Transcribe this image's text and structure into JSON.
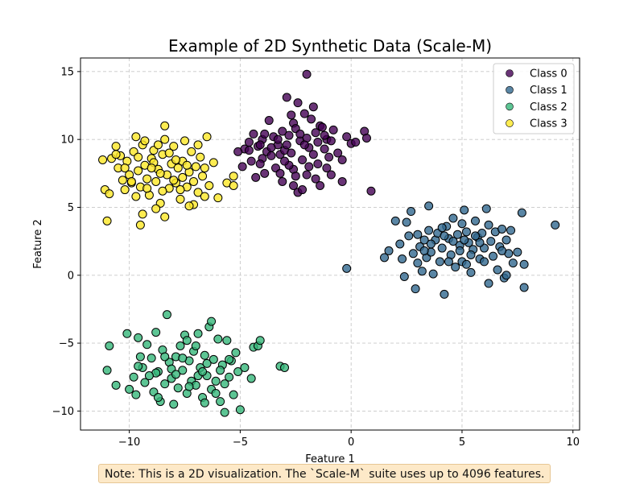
{
  "chart_data": {
    "type": "scatter",
    "title": "Example of 2D Synthetic Data (Scale-M)",
    "xlabel": "Feature 1",
    "ylabel": "Feature 2",
    "xlim": [
      -12.2,
      10.3
    ],
    "ylim": [
      -11.4,
      16.0
    ],
    "xticks": [
      -10,
      -5,
      0,
      5,
      10
    ],
    "yticks": [
      -10,
      -5,
      0,
      5,
      10,
      15
    ],
    "grid": true,
    "legend_position": "top-right",
    "series": [
      {
        "name": "Class 0",
        "color": "#440154",
        "points": [
          [
            -4.8,
            9.3
          ],
          [
            -4.6,
            9.2
          ],
          [
            -4.4,
            10.4
          ],
          [
            -4.2,
            9.5
          ],
          [
            -4.0,
            10.0
          ],
          [
            -4.0,
            8.6
          ],
          [
            -3.8,
            9.1
          ],
          [
            -3.7,
            11.4
          ],
          [
            -3.5,
            10.2
          ],
          [
            -3.3,
            9.6
          ],
          [
            -3.2,
            8.9
          ],
          [
            -3.1,
            10.6
          ],
          [
            -3.0,
            9.2
          ],
          [
            -2.9,
            13.1
          ],
          [
            -2.8,
            10.3
          ],
          [
            -2.7,
            9.0
          ],
          [
            -2.6,
            11.2
          ],
          [
            -2.5,
            10.8
          ],
          [
            -2.4,
            12.7
          ],
          [
            -2.3,
            9.9
          ],
          [
            -2.2,
            8.5
          ],
          [
            -2.1,
            11.9
          ],
          [
            -2.0,
            10.1
          ],
          [
            -1.9,
            9.4
          ],
          [
            -1.8,
            11.5
          ],
          [
            -1.7,
            12.4
          ],
          [
            -1.6,
            10.5
          ],
          [
            -1.5,
            9.8
          ],
          [
            -1.4,
            11.0
          ],
          [
            -1.3,
            10.9
          ],
          [
            -1.2,
            9.3
          ],
          [
            -1.1,
            10.0
          ],
          [
            -1.0,
            8.7
          ],
          [
            -0.9,
            9.9
          ],
          [
            -0.8,
            10.7
          ],
          [
            -0.6,
            9.0
          ],
          [
            -0.4,
            8.5
          ],
          [
            -0.2,
            10.2
          ],
          [
            0.0,
            9.7
          ],
          [
            0.2,
            9.8
          ],
          [
            0.6,
            10.6
          ],
          [
            0.7,
            10.1
          ],
          [
            0.9,
            6.2
          ],
          [
            -2.0,
            14.8
          ],
          [
            -5.1,
            9.1
          ],
          [
            -4.9,
            8.0
          ],
          [
            -4.3,
            7.2
          ],
          [
            -3.9,
            7.5
          ],
          [
            -3.4,
            7.9
          ],
          [
            -3.1,
            6.9
          ],
          [
            -2.6,
            7.8
          ],
          [
            -2.4,
            6.1
          ],
          [
            -2.2,
            6.3
          ],
          [
            -1.6,
            7.1
          ],
          [
            -1.4,
            6.6
          ],
          [
            -1.1,
            7.9
          ],
          [
            -0.4,
            6.9
          ],
          [
            -4.6,
            9.8
          ],
          [
            -4.1,
            8.2
          ],
          [
            -3.6,
            8.8
          ],
          [
            -2.8,
            8.1
          ],
          [
            -2.5,
            7.3
          ],
          [
            -1.9,
            8.0
          ],
          [
            -1.7,
            8.9
          ],
          [
            -3.3,
            10.0
          ],
          [
            -2.9,
            9.6
          ],
          [
            -2.3,
            10.4
          ],
          [
            -3.6,
            9.4
          ],
          [
            -4.5,
            8.4
          ],
          [
            -3.0,
            8.4
          ],
          [
            -1.5,
            8.2
          ],
          [
            -2.1,
            9.6
          ],
          [
            -4.1,
            9.6
          ],
          [
            -3.2,
            7.5
          ],
          [
            -2.0,
            7.4
          ],
          [
            -1.2,
            10.3
          ],
          [
            -2.7,
            11.8
          ],
          [
            -3.9,
            10.4
          ],
          [
            -2.6,
            6.6
          ],
          [
            -0.9,
            7.4
          ]
        ]
      },
      {
        "name": "Class 1",
        "color": "#31688e",
        "points": [
          [
            1.5,
            1.3
          ],
          [
            1.7,
            1.8
          ],
          [
            2.0,
            4.0
          ],
          [
            2.2,
            2.3
          ],
          [
            2.3,
            1.2
          ],
          [
            2.4,
            -0.1
          ],
          [
            2.5,
            3.9
          ],
          [
            2.6,
            2.9
          ],
          [
            2.7,
            4.7
          ],
          [
            2.8,
            1.6
          ],
          [
            2.9,
            -1.0
          ],
          [
            3.0,
            3.0
          ],
          [
            3.1,
            2.1
          ],
          [
            3.2,
            0.3
          ],
          [
            3.3,
            2.6
          ],
          [
            3.4,
            1.3
          ],
          [
            3.5,
            3.3
          ],
          [
            3.5,
            5.1
          ],
          [
            3.6,
            1.7
          ],
          [
            3.7,
            0.1
          ],
          [
            3.8,
            2.6
          ],
          [
            3.9,
            3.1
          ],
          [
            4.0,
            1.0
          ],
          [
            4.1,
            2.0
          ],
          [
            4.2,
            -1.4
          ],
          [
            4.3,
            3.6
          ],
          [
            4.4,
            2.7
          ],
          [
            4.5,
            1.5
          ],
          [
            4.6,
            4.2
          ],
          [
            4.7,
            0.6
          ],
          [
            4.8,
            3.0
          ],
          [
            4.9,
            2.2
          ],
          [
            5.0,
            1.0
          ],
          [
            5.1,
            4.8
          ],
          [
            5.2,
            3.2
          ],
          [
            5.3,
            2.4
          ],
          [
            5.4,
            0.2
          ],
          [
            5.5,
            1.9
          ],
          [
            5.6,
            4.0
          ],
          [
            5.7,
            2.8
          ],
          [
            5.8,
            1.2
          ],
          [
            5.9,
            3.1
          ],
          [
            6.0,
            2.0
          ],
          [
            6.1,
            4.9
          ],
          [
            6.2,
            -0.6
          ],
          [
            6.3,
            2.5
          ],
          [
            6.4,
            1.4
          ],
          [
            6.5,
            3.2
          ],
          [
            6.6,
            0.4
          ],
          [
            6.7,
            2.1
          ],
          [
            6.8,
            3.4
          ],
          [
            6.9,
            -0.2
          ],
          [
            7.0,
            2.6
          ],
          [
            7.1,
            1.6
          ],
          [
            7.2,
            3.3
          ],
          [
            7.3,
            0.9
          ],
          [
            7.5,
            1.7
          ],
          [
            7.7,
            4.6
          ],
          [
            7.8,
            -0.9
          ],
          [
            7.8,
            0.8
          ],
          [
            9.2,
            3.7
          ],
          [
            -0.2,
            0.5
          ],
          [
            3.0,
            0.9
          ],
          [
            4.1,
            3.5
          ],
          [
            4.6,
            2.5
          ],
          [
            5.0,
            3.8
          ],
          [
            5.4,
            1.5
          ],
          [
            5.8,
            2.4
          ],
          [
            6.2,
            3.7
          ],
          [
            4.4,
            1.0
          ],
          [
            3.6,
            2.3
          ],
          [
            6.8,
            1.8
          ],
          [
            5.2,
            0.8
          ],
          [
            4.9,
            1.8
          ],
          [
            5.6,
            2.9
          ],
          [
            6.0,
            1.0
          ],
          [
            4.2,
            2.9
          ],
          [
            3.3,
            1.8
          ],
          [
            7.0,
            0.0
          ],
          [
            5.1,
            2.6
          ]
        ]
      },
      {
        "name": "Class 2",
        "color": "#35b779",
        "points": [
          [
            -11.0,
            -7.0
          ],
          [
            -10.9,
            -5.2
          ],
          [
            -10.6,
            -8.1
          ],
          [
            -10.1,
            -4.3
          ],
          [
            -10.0,
            -8.4
          ],
          [
            -9.8,
            -7.5
          ],
          [
            -9.7,
            -8.8
          ],
          [
            -9.6,
            -4.6
          ],
          [
            -9.5,
            -6.0
          ],
          [
            -9.4,
            -6.8
          ],
          [
            -9.3,
            -7.9
          ],
          [
            -9.2,
            -5.1
          ],
          [
            -9.0,
            -6.1
          ],
          [
            -8.9,
            -8.6
          ],
          [
            -8.8,
            -4.2
          ],
          [
            -8.7,
            -7.1
          ],
          [
            -8.6,
            -9.3
          ],
          [
            -8.5,
            -5.5
          ],
          [
            -8.4,
            -8.0
          ],
          [
            -8.3,
            -2.9
          ],
          [
            -8.2,
            -6.4
          ],
          [
            -8.1,
            -7.6
          ],
          [
            -8.0,
            -9.5
          ],
          [
            -7.9,
            -6.0
          ],
          [
            -7.8,
            -8.3
          ],
          [
            -7.7,
            -5.2
          ],
          [
            -7.6,
            -7.0
          ],
          [
            -7.5,
            -4.4
          ],
          [
            -7.4,
            -8.7
          ],
          [
            -7.3,
            -6.3
          ],
          [
            -7.2,
            -7.8
          ],
          [
            -7.1,
            -5.6
          ],
          [
            -7.0,
            -8.1
          ],
          [
            -6.9,
            -4.3
          ],
          [
            -6.8,
            -6.8
          ],
          [
            -6.7,
            -9.0
          ],
          [
            -6.6,
            -5.9
          ],
          [
            -6.5,
            -7.4
          ],
          [
            -6.4,
            -3.8
          ],
          [
            -6.3,
            -8.4
          ],
          [
            -6.2,
            -6.2
          ],
          [
            -6.1,
            -7.8
          ],
          [
            -6.0,
            -4.7
          ],
          [
            -5.9,
            -9.3
          ],
          [
            -5.8,
            -6.6
          ],
          [
            -5.7,
            -8.0
          ],
          [
            -5.6,
            -4.8
          ],
          [
            -5.5,
            -7.5
          ],
          [
            -5.4,
            -6.3
          ],
          [
            -5.3,
            -8.8
          ],
          [
            -5.2,
            -5.7
          ],
          [
            -5.1,
            -7.1
          ],
          [
            -5.0,
            -9.9
          ],
          [
            -4.8,
            -6.8
          ],
          [
            -4.5,
            -7.6
          ],
          [
            -4.4,
            -5.3
          ],
          [
            -4.2,
            -5.2
          ],
          [
            -4.1,
            -4.8
          ],
          [
            -3.2,
            -6.7
          ],
          [
            -3.0,
            -6.8
          ],
          [
            -6.3,
            -3.4
          ],
          [
            -7.4,
            -4.8
          ],
          [
            -5.7,
            -10.1
          ],
          [
            -6.6,
            -9.4
          ],
          [
            -8.8,
            -7.2
          ],
          [
            -9.1,
            -7.4
          ],
          [
            -8.1,
            -6.9
          ],
          [
            -7.0,
            -5.2
          ],
          [
            -6.5,
            -6.5
          ],
          [
            -5.9,
            -7.0
          ],
          [
            -7.6,
            -6.1
          ],
          [
            -8.4,
            -6.0
          ],
          [
            -7.3,
            -8.2
          ],
          [
            -6.1,
            -8.7
          ],
          [
            -9.6,
            -6.7
          ],
          [
            -8.7,
            -9.0
          ],
          [
            -5.5,
            -6.2
          ],
          [
            -6.9,
            -7.4
          ],
          [
            -7.9,
            -7.3
          ],
          [
            -6.7,
            -7.1
          ]
        ]
      },
      {
        "name": "Class 3",
        "color": "#fde725",
        "points": [
          [
            -11.2,
            8.5
          ],
          [
            -11.1,
            6.3
          ],
          [
            -10.9,
            6.0
          ],
          [
            -10.8,
            8.6
          ],
          [
            -10.6,
            9.5
          ],
          [
            -10.5,
            7.9
          ],
          [
            -10.4,
            8.8
          ],
          [
            -10.3,
            7.0
          ],
          [
            -10.2,
            6.3
          ],
          [
            -10.1,
            8.4
          ],
          [
            -10.0,
            7.4
          ],
          [
            -9.9,
            6.8
          ],
          [
            -9.8,
            9.1
          ],
          [
            -9.7,
            10.2
          ],
          [
            -9.6,
            7.7
          ],
          [
            -9.5,
            6.5
          ],
          [
            -9.4,
            9.6
          ],
          [
            -9.3,
            8.1
          ],
          [
            -9.2,
            7.1
          ],
          [
            -9.1,
            5.9
          ],
          [
            -9.0,
            8.6
          ],
          [
            -8.9,
            9.2
          ],
          [
            -8.8,
            6.9
          ],
          [
            -8.7,
            7.8
          ],
          [
            -8.6,
            5.3
          ],
          [
            -8.5,
            8.9
          ],
          [
            -8.4,
            10.0
          ],
          [
            -8.3,
            7.4
          ],
          [
            -8.2,
            6.4
          ],
          [
            -8.1,
            8.2
          ],
          [
            -8.0,
            9.5
          ],
          [
            -7.9,
            6.8
          ],
          [
            -7.8,
            7.9
          ],
          [
            -7.7,
            5.6
          ],
          [
            -7.6,
            8.4
          ],
          [
            -7.5,
            9.9
          ],
          [
            -7.4,
            6.5
          ],
          [
            -7.3,
            7.6
          ],
          [
            -7.2,
            9.1
          ],
          [
            -7.1,
            5.2
          ],
          [
            -7.0,
            8.0
          ],
          [
            -6.9,
            6.1
          ],
          [
            -6.8,
            8.7
          ],
          [
            -6.7,
            7.3
          ],
          [
            -6.6,
            5.8
          ],
          [
            -6.5,
            10.2
          ],
          [
            -6.4,
            6.6
          ],
          [
            -6.2,
            8.3
          ],
          [
            -6.0,
            5.7
          ],
          [
            -5.6,
            6.8
          ],
          [
            -5.3,
            6.6
          ],
          [
            -5.3,
            7.3
          ],
          [
            -11.0,
            4.0
          ],
          [
            -9.5,
            3.7
          ],
          [
            -9.4,
            4.5
          ],
          [
            -8.4,
            4.3
          ],
          [
            -8.4,
            11.0
          ],
          [
            -9.2,
            6.4
          ],
          [
            -8.8,
            4.9
          ],
          [
            -7.3,
            5.1
          ],
          [
            -9.9,
            6.9
          ],
          [
            -9.6,
            8.7
          ],
          [
            -8.9,
            8.3
          ],
          [
            -8.2,
            9.0
          ],
          [
            -7.9,
            8.5
          ],
          [
            -8.6,
            7.5
          ],
          [
            -7.6,
            7.2
          ],
          [
            -9.0,
            7.9
          ],
          [
            -10.2,
            7.9
          ],
          [
            -7.1,
            6.9
          ],
          [
            -6.9,
            9.6
          ],
          [
            -8.5,
            6.2
          ],
          [
            -9.7,
            5.8
          ],
          [
            -7.4,
            8.1
          ],
          [
            -8.0,
            7.0
          ],
          [
            -9.3,
            9.9
          ],
          [
            -6.6,
            7.9
          ],
          [
            -10.6,
            8.9
          ],
          [
            -8.7,
            9.6
          ],
          [
            -7.7,
            6.3
          ]
        ]
      }
    ]
  },
  "note": {
    "text": "Note: This is a 2D visualization. The `Scale-M` suite uses up to 4096 features."
  }
}
